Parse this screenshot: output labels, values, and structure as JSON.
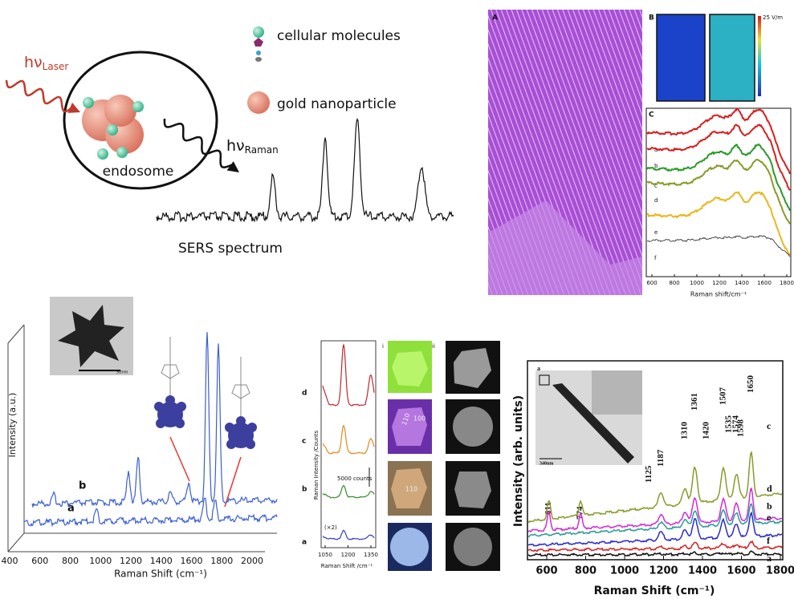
{
  "panel_1": {
    "laser_label": {
      "main": "hν",
      "sub": "Laser"
    },
    "legend": [
      "cellular molecules",
      "gold nanoparticle"
    ],
    "endosome_label": "endosome",
    "raman_label": {
      "main": "hν",
      "sub": "Raman"
    },
    "spectrum_label": "SERS spectrum"
  },
  "panel_2": {
    "labels": [
      "A",
      "B",
      "C"
    ],
    "colorbar_label": "25 V/m",
    "curve_labels": [
      "a",
      "b",
      "c",
      "d",
      "e",
      "f"
    ],
    "xticks": [
      600,
      800,
      1000,
      1200,
      1400,
      1600,
      1800
    ],
    "xlabel": "Raman shift/cm⁻¹"
  },
  "panel_3": {
    "scale_label": "50nm",
    "ylabel": "Intensity (a.u.)",
    "curve_labels": [
      "b",
      "a"
    ],
    "xticks": [
      400,
      600,
      800,
      1000,
      1200,
      1400,
      1600,
      1800,
      2000
    ],
    "xlabel": "Raman Shift (cm⁻¹)"
  },
  "panel_4": {
    "ylabel": "Raman Intensity /Counts",
    "curve_labels": [
      "d",
      "c",
      "b",
      "a"
    ],
    "scale_label": "5000 counts",
    "factor_label": "(×2)",
    "xticks": [
      1050,
      1200,
      1350
    ],
    "xlabel": "Raman Shift /cm⁻¹",
    "column_labels": [
      "i",
      "ii"
    ],
    "facet_labels": [
      "110",
      "100",
      "110"
    ]
  },
  "panel_5": {
    "inset_label": "a",
    "inset_scale": "340nm",
    "ylabel": "Intensity (arb. units)",
    "xlabel": "Raman Shift (cm⁻¹)",
    "xticks": [
      600,
      800,
      1000,
      1200,
      1400,
      1600,
      1800
    ],
    "peak_labels": [
      611,
      774,
      1125,
      1187,
      1310,
      1361,
      1420,
      1507,
      1535,
      1574,
      1598,
      1650
    ],
    "curve_labels": [
      "c",
      "d",
      "b",
      "e",
      "f",
      "a"
    ]
  }
}
